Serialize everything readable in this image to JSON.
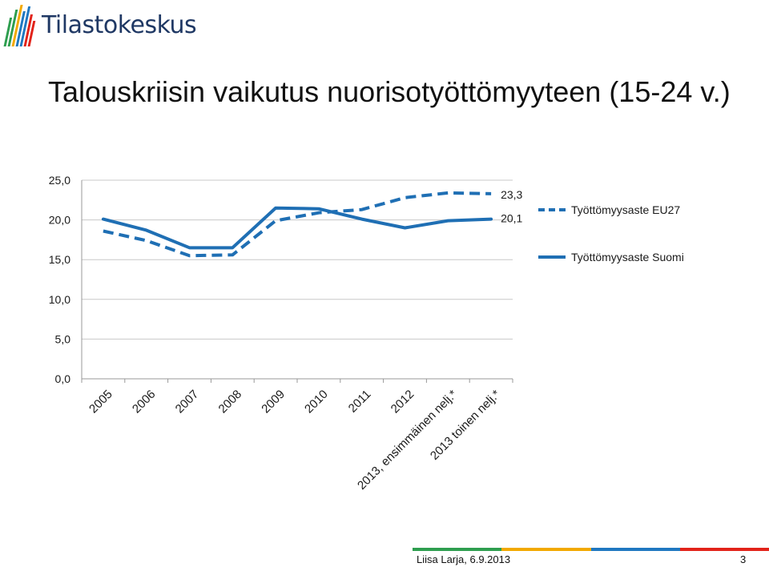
{
  "header": {
    "logo_text": "Tilastokeskus",
    "title": "Talouskriisin vaikutus nuorisotyöttömyyteen (15-24 v.)"
  },
  "chart_data": {
    "type": "line",
    "categories": [
      "2005",
      "2006",
      "2007",
      "2008",
      "2009",
      "2010",
      "2011",
      "2012",
      "2013, ensimmäinen nelj.*",
      "2013 toinen nelj.*"
    ],
    "series": [
      {
        "name": "Työttömyysaste EU27",
        "style": "dashed",
        "color": "#1f6fb4",
        "values": [
          18.6,
          17.4,
          15.5,
          15.6,
          19.9,
          20.9,
          21.3,
          22.8,
          23.4,
          23.3
        ]
      },
      {
        "name": "Työttömyysaste Suomi",
        "style": "solid",
        "color": "#1f6fb4",
        "values": [
          20.1,
          18.7,
          16.5,
          16.5,
          21.5,
          21.4,
          20.1,
          19.0,
          19.9,
          20.1
        ]
      }
    ],
    "data_labels": [
      {
        "series": 0,
        "index": 9,
        "text": "23,3"
      },
      {
        "series": 1,
        "index": 9,
        "text": "20,1"
      }
    ],
    "y_ticks": [
      {
        "value": 0,
        "label": "0,0"
      },
      {
        "value": 5,
        "label": "5,0"
      },
      {
        "value": 10,
        "label": "10,0"
      },
      {
        "value": 15,
        "label": "15,0"
      },
      {
        "value": 20,
        "label": "20,0"
      },
      {
        "value": 25,
        "label": "25,0"
      }
    ],
    "ylim": [
      0,
      25
    ],
    "grid": "horizontal",
    "legend": "right"
  },
  "footer": {
    "author": "Liisa Larja, 6.9.2013",
    "page": "3",
    "stripe_colors": [
      "#2e9e4f",
      "#f2a900",
      "#1f78c1",
      "#e2231a"
    ]
  },
  "colors": {
    "axis": "#999999",
    "grid": "#c8c8c8",
    "text": "#1a1a1a"
  }
}
